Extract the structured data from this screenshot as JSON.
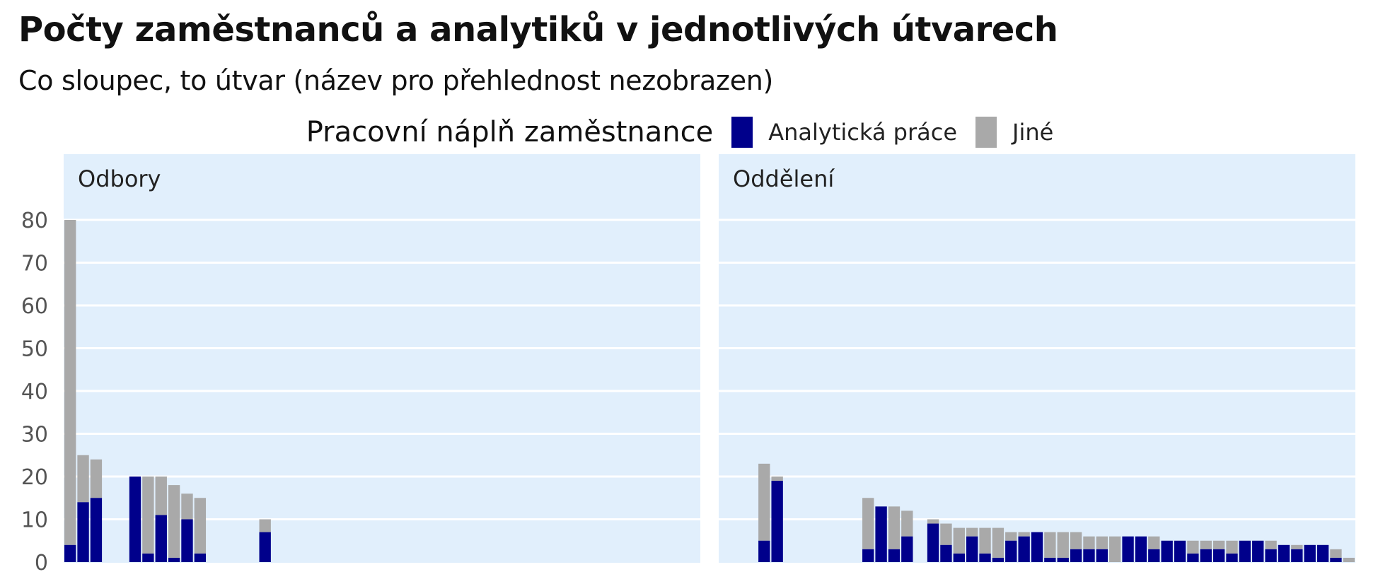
{
  "chart_data": {
    "type": "bar",
    "stacked": true,
    "title": "Počty zaměstnanců a analytiků v jednotlivých útvarech",
    "subtitle": "Co sloupec, to útvar (název pro přehlednost nezobrazen)",
    "legend": {
      "title": "Pracovní náplň zaměstnance",
      "placement": "top-center",
      "entries": [
        {
          "name": "Analytická práce",
          "color": "#00008B"
        },
        {
          "name": "Jiné",
          "color": "#A9A9A9"
        }
      ]
    },
    "ylim": [
      0,
      92
    ],
    "yticks": [
      0,
      10,
      20,
      30,
      40,
      50,
      60,
      70,
      80
    ],
    "grid": true,
    "panel_background": "#E1EFFC",
    "panels": [
      {
        "label": "Odbory",
        "slots": 49,
        "bars": [
          {
            "slot": 0,
            "analyticka": 4,
            "jine": 76
          },
          {
            "slot": 1,
            "analyticka": 14,
            "jine": 11
          },
          {
            "slot": 2,
            "analyticka": 15,
            "jine": 9
          },
          {
            "slot": 5,
            "analyticka": 20,
            "jine": 0
          },
          {
            "slot": 6,
            "analyticka": 2,
            "jine": 18
          },
          {
            "slot": 7,
            "analyticka": 11,
            "jine": 9
          },
          {
            "slot": 8,
            "analyticka": 1,
            "jine": 17
          },
          {
            "slot": 9,
            "analyticka": 10,
            "jine": 6
          },
          {
            "slot": 10,
            "analyticka": 2,
            "jine": 13
          },
          {
            "slot": 15,
            "analyticka": 7,
            "jine": 3
          }
        ]
      },
      {
        "label": "Oddělení",
        "slots": 49,
        "bars": [
          {
            "slot": 3,
            "analyticka": 5,
            "jine": 18
          },
          {
            "slot": 4,
            "analyticka": 19,
            "jine": 1
          },
          {
            "slot": 11,
            "analyticka": 3,
            "jine": 12
          },
          {
            "slot": 12,
            "analyticka": 13,
            "jine": 0
          },
          {
            "slot": 13,
            "analyticka": 3,
            "jine": 10
          },
          {
            "slot": 14,
            "analyticka": 6,
            "jine": 6
          },
          {
            "slot": 16,
            "analyticka": 9,
            "jine": 1
          },
          {
            "slot": 17,
            "analyticka": 4,
            "jine": 5
          },
          {
            "slot": 18,
            "analyticka": 2,
            "jine": 6
          },
          {
            "slot": 19,
            "analyticka": 6,
            "jine": 2
          },
          {
            "slot": 20,
            "analyticka": 2,
            "jine": 6
          },
          {
            "slot": 21,
            "analyticka": 1,
            "jine": 7
          },
          {
            "slot": 22,
            "analyticka": 5,
            "jine": 2
          },
          {
            "slot": 23,
            "analyticka": 6,
            "jine": 1
          },
          {
            "slot": 24,
            "analyticka": 7,
            "jine": 0
          },
          {
            "slot": 25,
            "analyticka": 1,
            "jine": 6
          },
          {
            "slot": 26,
            "analyticka": 1,
            "jine": 6
          },
          {
            "slot": 27,
            "analyticka": 3,
            "jine": 4
          },
          {
            "slot": 28,
            "analyticka": 3,
            "jine": 3
          },
          {
            "slot": 29,
            "analyticka": 3,
            "jine": 3
          },
          {
            "slot": 30,
            "analyticka": 0,
            "jine": 6
          },
          {
            "slot": 31,
            "analyticka": 6,
            "jine": 0
          },
          {
            "slot": 32,
            "analyticka": 6,
            "jine": 0
          },
          {
            "slot": 33,
            "analyticka": 3,
            "jine": 3
          },
          {
            "slot": 34,
            "analyticka": 5,
            "jine": 0
          },
          {
            "slot": 35,
            "analyticka": 5,
            "jine": 0
          },
          {
            "slot": 36,
            "analyticka": 2,
            "jine": 3
          },
          {
            "slot": 37,
            "analyticka": 3,
            "jine": 2
          },
          {
            "slot": 38,
            "analyticka": 3,
            "jine": 2
          },
          {
            "slot": 39,
            "analyticka": 2,
            "jine": 3
          },
          {
            "slot": 40,
            "analyticka": 5,
            "jine": 0
          },
          {
            "slot": 41,
            "analyticka": 5,
            "jine": 0
          },
          {
            "slot": 42,
            "analyticka": 3,
            "jine": 2
          },
          {
            "slot": 43,
            "analyticka": 4,
            "jine": 0
          },
          {
            "slot": 44,
            "analyticka": 3,
            "jine": 1
          },
          {
            "slot": 45,
            "analyticka": 4,
            "jine": 0
          },
          {
            "slot": 46,
            "analyticka": 4,
            "jine": 0
          },
          {
            "slot": 47,
            "analyticka": 1,
            "jine": 2
          },
          {
            "slot": 48,
            "analyticka": 0,
            "jine": 1
          }
        ]
      }
    ]
  }
}
